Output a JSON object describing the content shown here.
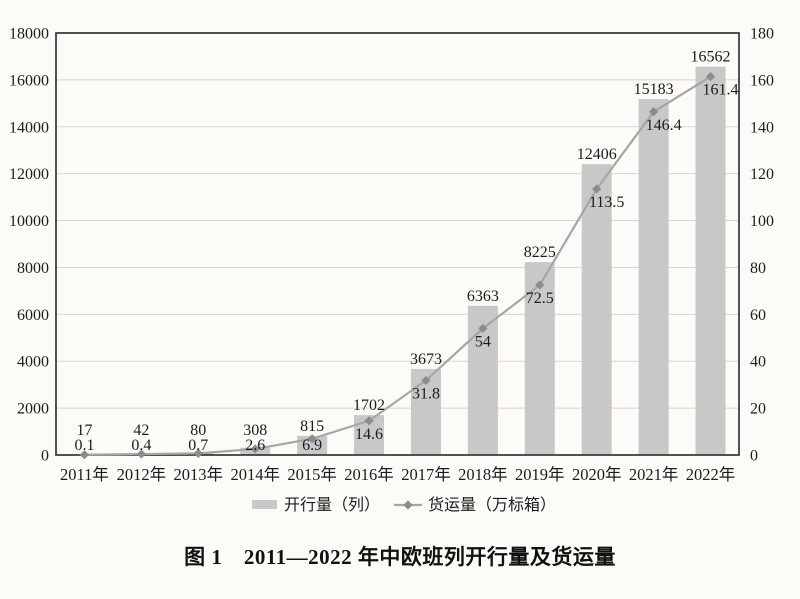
{
  "figure": {
    "caption": "图 1　2011—2022 年中欧班列开行量及货运量"
  },
  "chart_data": {
    "type": "combo-bar-line",
    "categories": [
      "2011年",
      "2012年",
      "2013年",
      "2014年",
      "2015年",
      "2016年",
      "2017年",
      "2018年",
      "2019年",
      "2020年",
      "2021年",
      "2022年"
    ],
    "series": [
      {
        "name": "开行量（列）",
        "type": "bar",
        "axis": "left",
        "values": [
          17,
          42,
          80,
          308,
          815,
          1702,
          3673,
          6363,
          8225,
          12406,
          15183,
          16562
        ]
      },
      {
        "name": "货运量（万标箱）",
        "type": "line",
        "axis": "right",
        "values": [
          0.1,
          0.4,
          0.7,
          2.6,
          6.9,
          14.6,
          31.8,
          54,
          72.5,
          113.5,
          146.4,
          161.4
        ]
      }
    ],
    "left_axis": {
      "min": 0,
      "max": 18000,
      "step": 2000,
      "ticks": [
        "0",
        "2000",
        "4000",
        "6000",
        "8000",
        "10000",
        "12000",
        "14000",
        "16000",
        "18000"
      ]
    },
    "right_axis": {
      "min": 0,
      "max": 180,
      "step": 20,
      "ticks": [
        "0",
        "20",
        "40",
        "60",
        "80",
        "100",
        "120",
        "140",
        "160",
        "180"
      ]
    },
    "grid": true,
    "legend_position": "bottom",
    "data_labels": true,
    "colors": {
      "background": "#fdfbf7",
      "bar": "#c8c8c8",
      "line": "#a6a6a6",
      "marker": "#8c8c8c",
      "border": "#3f3f3f",
      "grid": "#dad6d1",
      "text": "#1c1c1c"
    }
  }
}
